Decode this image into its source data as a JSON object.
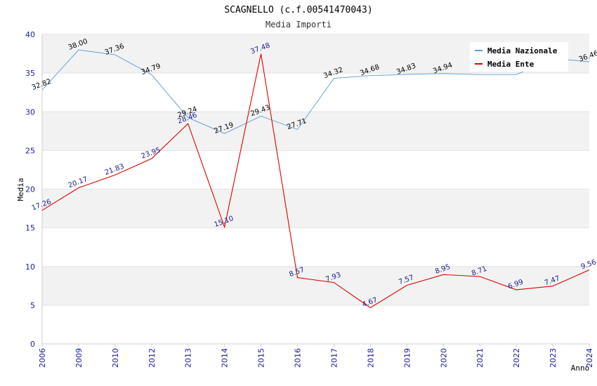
{
  "chart_data": {
    "type": "line",
    "title": "SCAGNELLO (c.f.00541470043)",
    "subtitle": "Media Importi",
    "xlabel": "Anno",
    "ylabel": "Media",
    "ylim": [
      0,
      40
    ],
    "yticks": [
      0,
      5,
      10,
      15,
      20,
      25,
      30,
      35,
      40
    ],
    "categories": [
      "2006",
      "2009",
      "2010",
      "2012",
      "2013",
      "2014",
      "2015",
      "2016",
      "2017",
      "2018",
      "2019",
      "2020",
      "2021",
      "2022",
      "2023",
      "2024"
    ],
    "series": [
      {
        "name": "Media Nazionale",
        "color": "#5b9bd5",
        "values": [
          32.82,
          38.0,
          37.36,
          34.79,
          29.24,
          27.19,
          29.43,
          27.71,
          34.32,
          34.68,
          34.83,
          34.94,
          34.8,
          34.8,
          36.9,
          36.46
        ],
        "labels": [
          "32.82",
          "38.00",
          "37.36",
          "34.79",
          "29.24",
          "27.19",
          "29.43",
          "27.71",
          "34.32",
          "34.68",
          "34.83",
          "34.94",
          "",
          "",
          "",
          "36.46"
        ]
      },
      {
        "name": "Media Ente",
        "color": "#e00000",
        "values": [
          17.26,
          20.17,
          21.83,
          23.95,
          28.46,
          15.1,
          37.48,
          8.57,
          7.93,
          4.67,
          7.57,
          8.95,
          8.71,
          6.99,
          7.47,
          9.56
        ],
        "labels": [
          "17.26",
          "20.17",
          "21.83",
          "23.95",
          "28.46",
          "15.10",
          "37.48",
          "8.57",
          "7.93",
          "4.67",
          "7.57",
          "8.95",
          "8.71",
          "6.99",
          "7.47",
          "9.56"
        ]
      }
    ],
    "legend": {
      "position": "top-right"
    },
    "grid": true
  }
}
